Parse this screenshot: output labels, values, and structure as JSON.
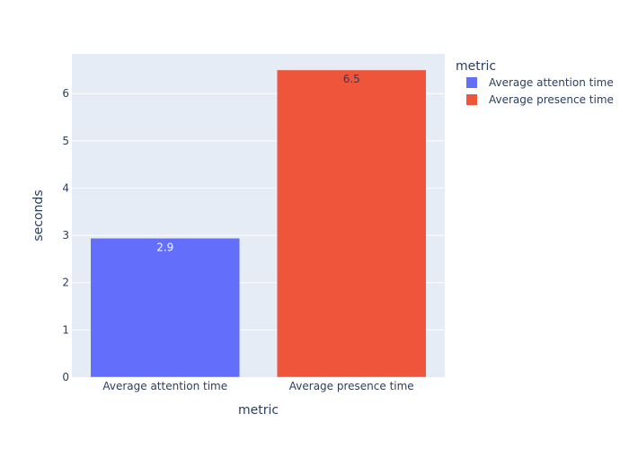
{
  "chart_data": {
    "type": "bar",
    "categories": [
      "Average attention time",
      "Average presence time"
    ],
    "values": [
      2.94,
      6.5
    ],
    "data_labels": [
      "2.9",
      "6.5"
    ],
    "series": [
      {
        "name": "Average attention time",
        "values": [
          2.94,
          null
        ],
        "color": "#636efa",
        "label_color": "#ffffff"
      },
      {
        "name": "Average presence time",
        "values": [
          null,
          6.5
        ],
        "color": "#ef553b",
        "label_color": "#2a3f5f"
      }
    ],
    "xlabel": "metric",
    "ylabel": "seconds",
    "legend_title": "metric",
    "legend_position": "top-right",
    "ylim": [
      0,
      6.84
    ],
    "yticks": [
      0,
      1,
      2,
      3,
      4,
      5,
      6
    ],
    "grid": true,
    "plot_background": "#e5ecf6",
    "gridline_color": "#ffffff",
    "text_color": "#2a3f5f"
  }
}
